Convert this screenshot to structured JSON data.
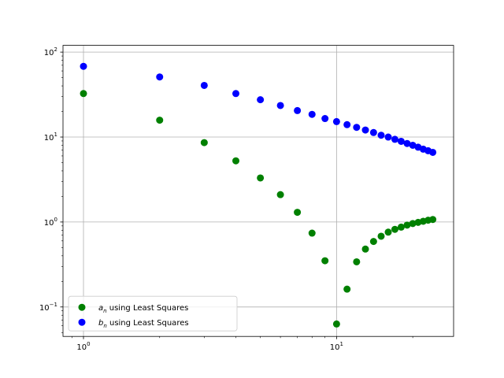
{
  "chart_data": {
    "type": "scatter",
    "title": "",
    "xlabel": "",
    "ylabel": "",
    "x_scale": "log",
    "y_scale": "log",
    "grid": true,
    "xlim": [
      0.83,
      29
    ],
    "ylim": [
      0.045,
      120
    ],
    "x_ticks": [
      {
        "value": 1,
        "base": "10",
        "exp": "0"
      },
      {
        "value": 10,
        "base": "10",
        "exp": "1"
      }
    ],
    "y_ticks": [
      {
        "value": 0.1,
        "base": "10",
        "exp": "−1"
      },
      {
        "value": 1,
        "base": "10",
        "exp": "0"
      },
      {
        "value": 10,
        "base": "10",
        "exp": "1"
      },
      {
        "value": 100,
        "base": "10",
        "exp": "2"
      }
    ],
    "legend_position": "lower-left",
    "series": [
      {
        "name": "a_n using Least Squares",
        "legend_symbol": "a",
        "legend_subscript": "n",
        "legend_text": " using Least Squares",
        "color": "#008000",
        "x": [
          1,
          2,
          3,
          4,
          5,
          6,
          7,
          8,
          9,
          10,
          11,
          12,
          13,
          14,
          15,
          16,
          17,
          18,
          19,
          20,
          21,
          22,
          23,
          24
        ],
        "y": [
          32.5,
          15.8,
          8.6,
          5.25,
          3.3,
          2.1,
          1.3,
          0.74,
          0.35,
          0.063,
          0.162,
          0.34,
          0.48,
          0.59,
          0.68,
          0.76,
          0.82,
          0.87,
          0.92,
          0.96,
          0.99,
          1.02,
          1.05,
          1.07
        ]
      },
      {
        "name": "b_n using Least Squares",
        "legend_symbol": "b",
        "legend_subscript": "n",
        "legend_text": " using Least Squares",
        "color": "#0000ff",
        "x": [
          1,
          2,
          3,
          4,
          5,
          6,
          7,
          8,
          9,
          10,
          11,
          12,
          13,
          14,
          15,
          16,
          17,
          18,
          19,
          20,
          21,
          22,
          23,
          24
        ],
        "y": [
          68,
          51,
          40.5,
          32.5,
          27.5,
          23.5,
          20.5,
          18.5,
          16.5,
          15.2,
          14,
          13,
          12.1,
          11.3,
          10.5,
          10,
          9.4,
          8.9,
          8.4,
          8,
          7.6,
          7.2,
          6.9,
          6.6
        ]
      }
    ]
  }
}
